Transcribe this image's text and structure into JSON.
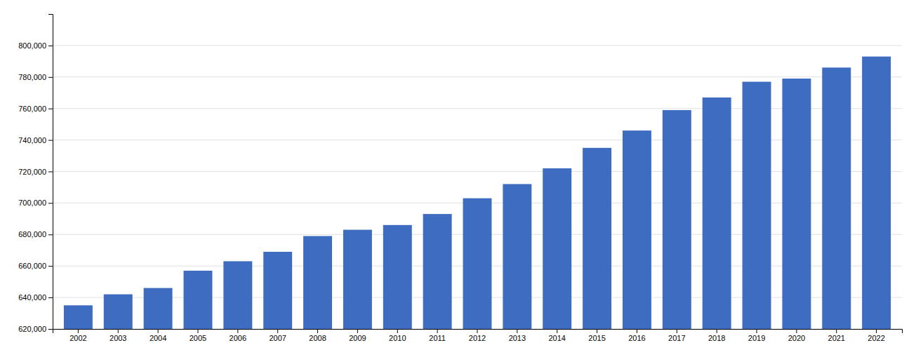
{
  "chart_data": {
    "type": "bar",
    "categories": [
      "2002",
      "2003",
      "2004",
      "2005",
      "2006",
      "2007",
      "2008",
      "2009",
      "2010",
      "2011",
      "2012",
      "2013",
      "2014",
      "2015",
      "2016",
      "2017",
      "2018",
      "2019",
      "2020",
      "2021",
      "2022"
    ],
    "values": [
      635000,
      642000,
      646000,
      657000,
      663000,
      669000,
      679000,
      683000,
      686000,
      693000,
      703000,
      712000,
      722000,
      735000,
      746000,
      759000,
      767000,
      777000,
      779000,
      786000,
      793000
    ],
    "color": "#3D6CC0",
    "ylim": [
      620000,
      820000
    ],
    "yticks": [
      {
        "value": 620000,
        "label": "620,000"
      },
      {
        "value": 640000,
        "label": "640,000"
      },
      {
        "value": 660000,
        "label": "660,000"
      },
      {
        "value": 680000,
        "label": "680,000"
      },
      {
        "value": 700000,
        "label": "700,000"
      },
      {
        "value": 720000,
        "label": "720,000"
      },
      {
        "value": 740000,
        "label": "740,000"
      },
      {
        "value": 760000,
        "label": "760,000"
      },
      {
        "value": 780000,
        "label": "780,000"
      },
      {
        "value": 800000,
        "label": "800,000"
      }
    ],
    "grid": true
  }
}
